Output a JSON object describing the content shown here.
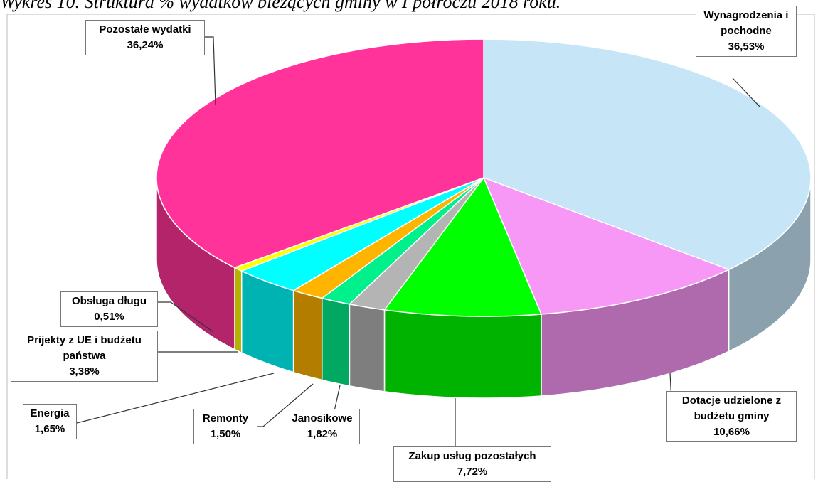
{
  "chart_data": {
    "type": "pie",
    "title": "Wykres 10. Struktura % wydatków bieżących gminy w I półroczu 2018 roku.",
    "categories": [
      "Wynagrodzenia i pochodne",
      "Dotacje udzielone z budżetu gminy",
      "Zakup usług pozostałych",
      "Janosikowe",
      "Remonty",
      "Energia",
      "Prijekty z UE i budżetu państwa",
      "Obsługa długu",
      "Pozostałe wydatki"
    ],
    "values": [
      36.53,
      10.66,
      7.72,
      1.82,
      1.5,
      1.65,
      3.38,
      0.51,
      36.24
    ],
    "value_labels": [
      "36,53%",
      "10,66%",
      "7,72%",
      "1,82%",
      "1,50%",
      "1,65%",
      "3,38%",
      "0,51%",
      "36,24%"
    ],
    "colors": [
      "#c6e6f8",
      "#f898f6",
      "#00ff00",
      "#b4b4b4",
      "#00f08c",
      "#ffb400",
      "#00ffff",
      "#ffff00",
      "#ff3399"
    ]
  }
}
